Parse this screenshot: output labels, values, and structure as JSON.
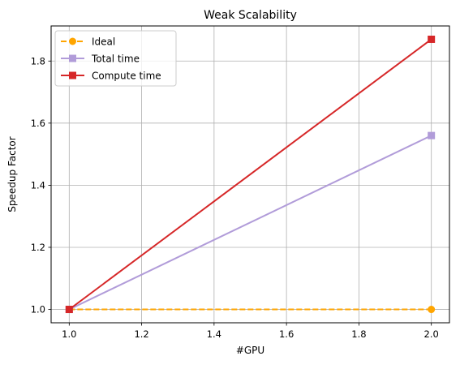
{
  "chart_data": {
    "type": "line",
    "title": "Weak Scalability",
    "xlabel": "#GPU",
    "ylabel": "Speedup Factor",
    "x": [
      1.0,
      2.0
    ],
    "xlim": [
      0.95,
      2.05
    ],
    "ylim": [
      0.957,
      1.913
    ],
    "xticks": [
      1.0,
      1.2,
      1.4,
      1.6,
      1.8,
      2.0
    ],
    "xtick_labels": [
      "1.0",
      "1.2",
      "1.4",
      "1.6",
      "1.8",
      "2.0"
    ],
    "yticks": [
      1.0,
      1.2,
      1.4,
      1.6,
      1.8
    ],
    "ytick_labels": [
      "1.0",
      "1.2",
      "1.4",
      "1.6",
      "1.8"
    ],
    "grid": true,
    "legend_position": "top-left",
    "series": [
      {
        "name": "Ideal",
        "values": [
          1.0,
          1.0
        ],
        "color": "#FFA500",
        "marker": "circle",
        "linestyle": "dashed"
      },
      {
        "name": "Total time",
        "values": [
          1.0,
          1.56
        ],
        "color": "#B19CD9",
        "marker": "square",
        "linestyle": "solid"
      },
      {
        "name": "Compute time",
        "values": [
          1.0,
          1.87
        ],
        "color": "#D62728",
        "marker": "square",
        "linestyle": "solid"
      }
    ]
  }
}
